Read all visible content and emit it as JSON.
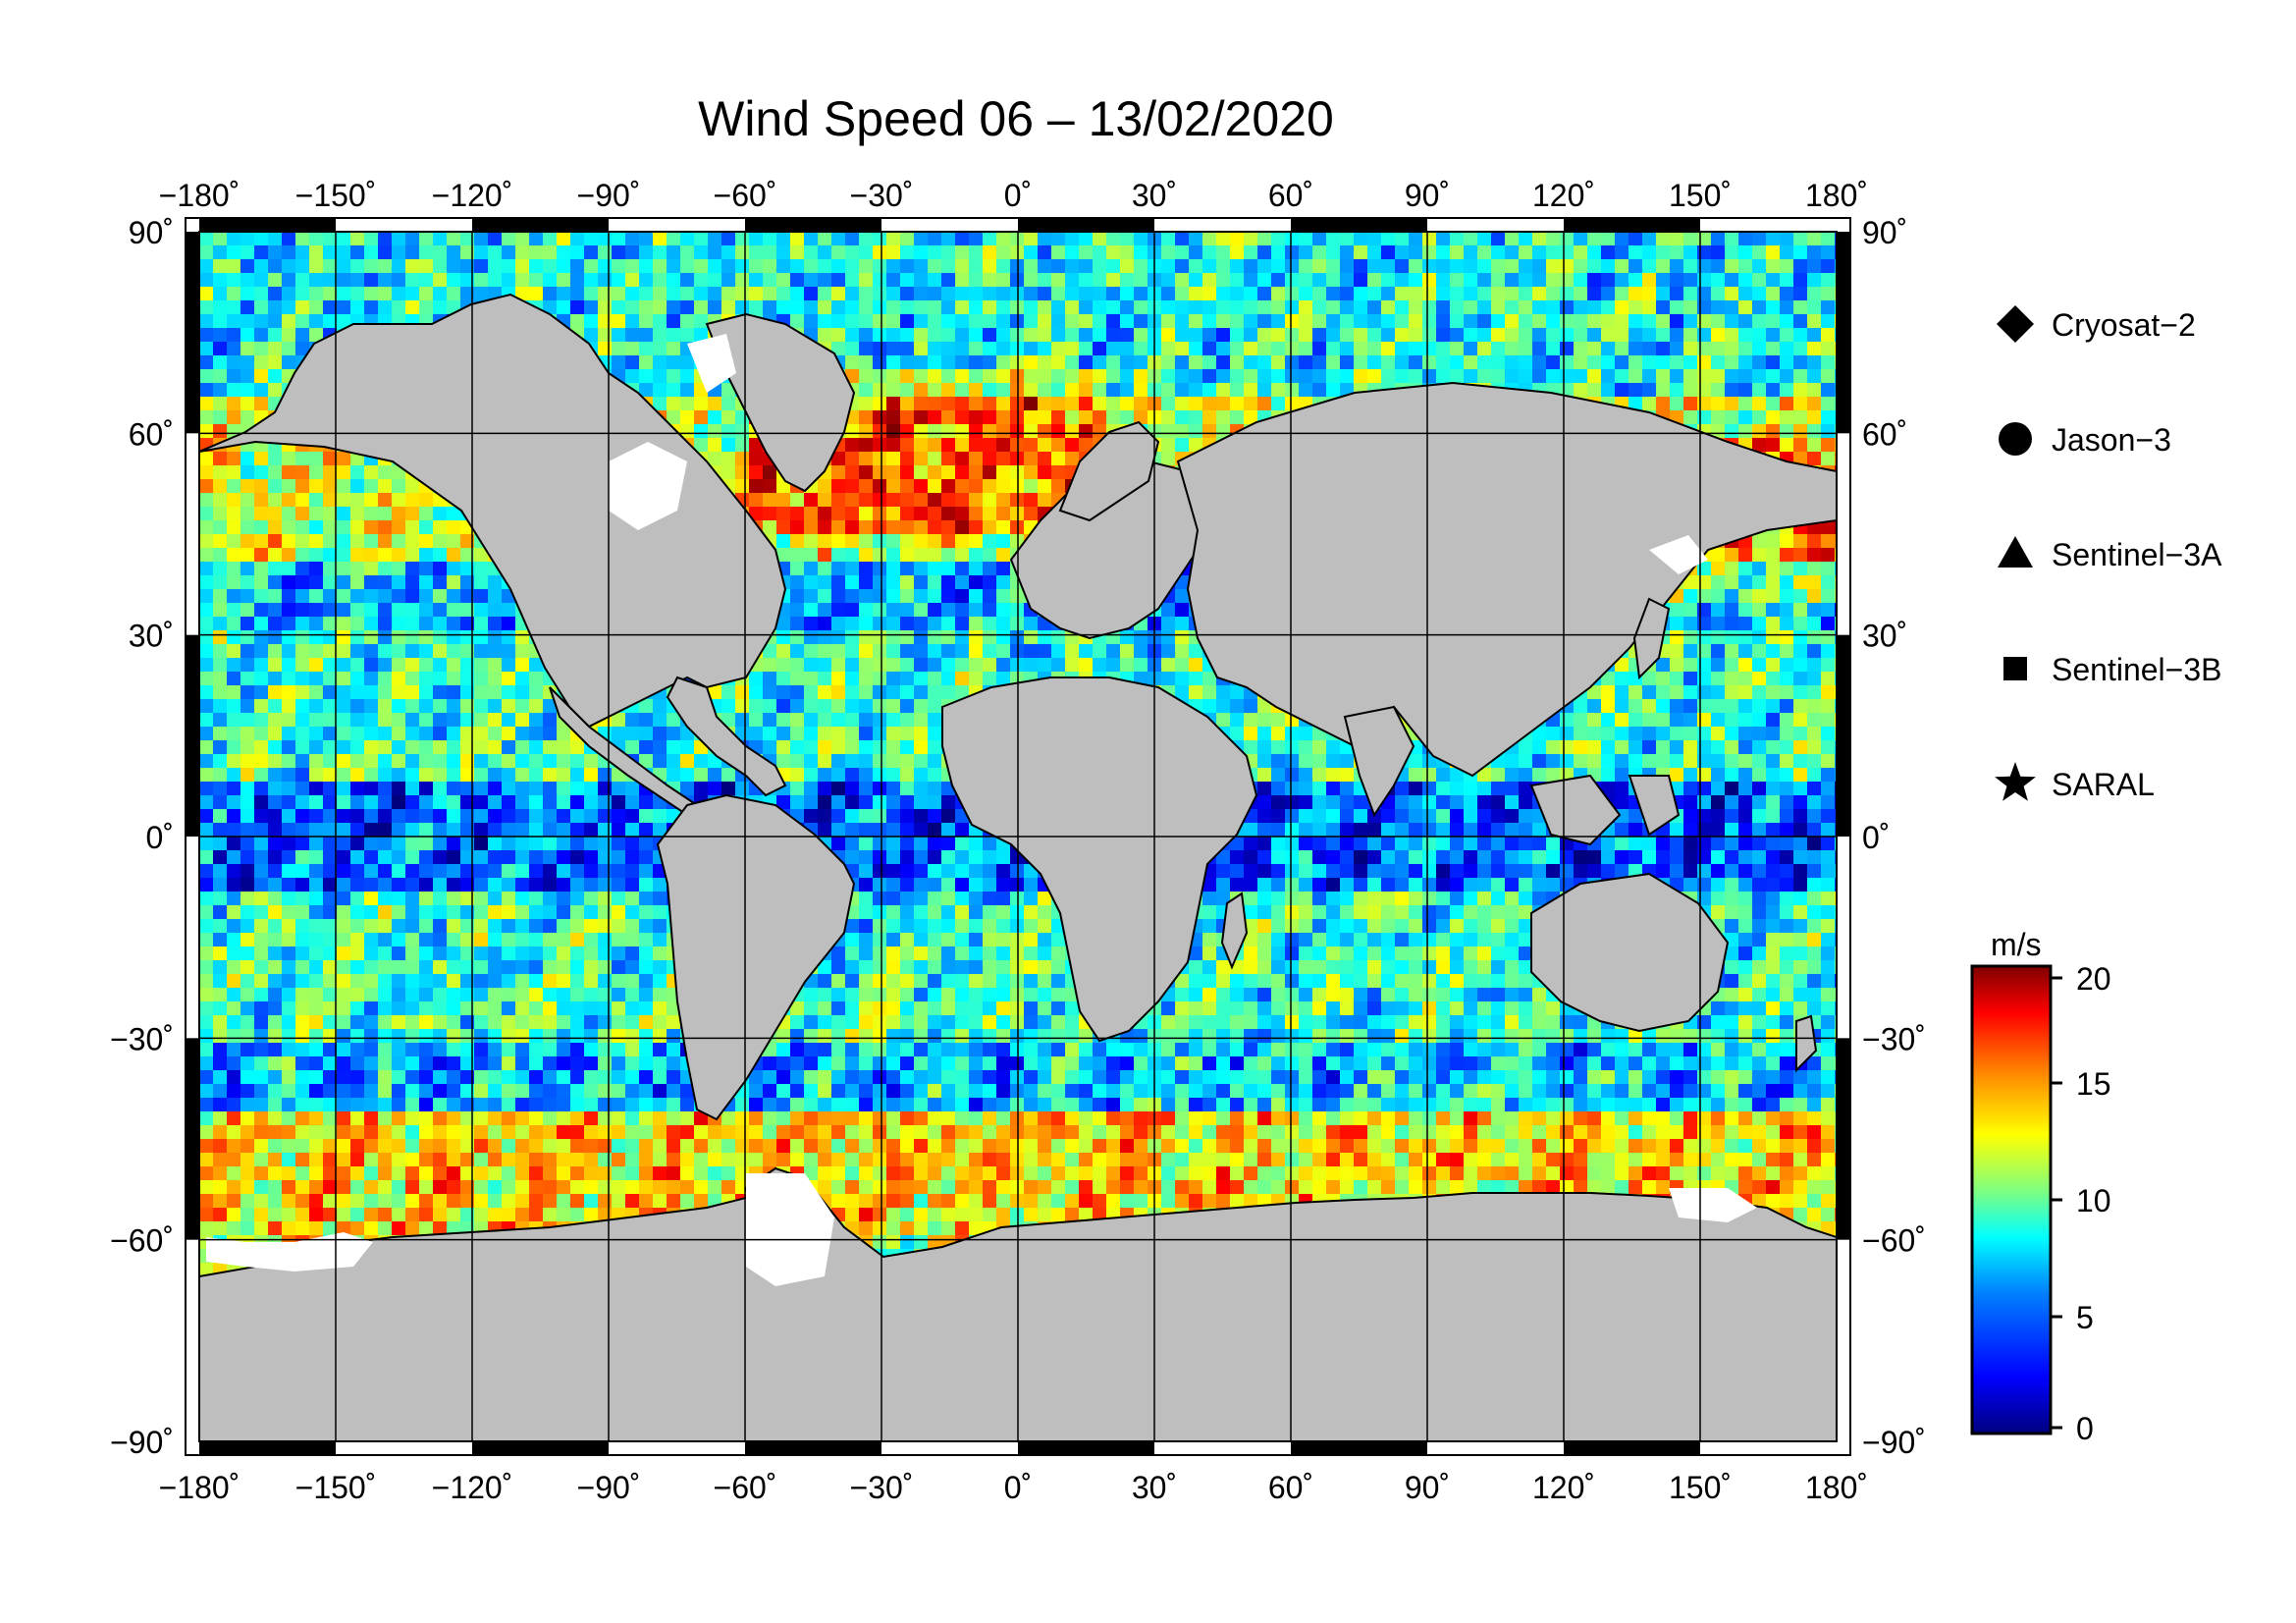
{
  "title": "Wind Speed 06 – 13/02/2020",
  "map": {
    "projection": "equirectangular",
    "lon_range": [
      -180,
      180
    ],
    "lat_range": [
      -90,
      90
    ],
    "lon_ticks": [
      "−180˚",
      "−150˚",
      "−120˚",
      "−90˚",
      "−60˚",
      "−30˚",
      "0˚",
      "30˚",
      "60˚",
      "90˚",
      "120˚",
      "150˚",
      "180˚"
    ],
    "lat_ticks": [
      "90˚",
      "60˚",
      "30˚",
      "0˚",
      "−30˚",
      "−60˚",
      "−90˚"
    ],
    "grid": true,
    "land_color": "#bebebe",
    "sea_ice_color": "#ffffff",
    "frame_style": "alternating black/white graduated border"
  },
  "legend": {
    "placement": "right",
    "items": [
      {
        "label": "Cryosat−2",
        "marker": "diamond"
      },
      {
        "label": "Jason−3",
        "marker": "circle"
      },
      {
        "label": "Sentinel−3A",
        "marker": "triangle"
      },
      {
        "label": "Sentinel−3B",
        "marker": "square"
      },
      {
        "label": "SARAL",
        "marker": "star"
      }
    ]
  },
  "colorbar": {
    "unit": "m/s",
    "ticks": [
      "20",
      "15",
      "10",
      "5",
      "0"
    ],
    "range": [
      0,
      20
    ],
    "colormap": [
      "#00007f",
      "#0000ff",
      "#007fff",
      "#00ffff",
      "#7fff7f",
      "#ffff00",
      "#ff7f00",
      "#ff0000",
      "#7f0000"
    ]
  }
}
